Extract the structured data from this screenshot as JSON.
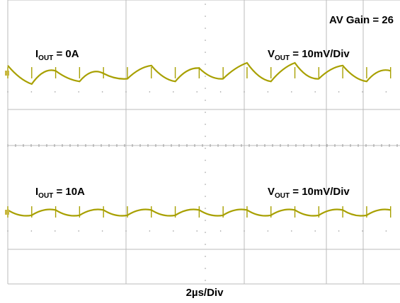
{
  "chart_data": [
    {
      "type": "line",
      "title": "",
      "xlabel": "2µs/Div",
      "ylabel": "",
      "gain_label": "AV Gain = 26",
      "condition": {
        "main": "I",
        "sub": "OUT",
        "rest": " = 0A"
      },
      "scale": {
        "main": "V",
        "sub": "OUT",
        "rest": " = 10mV/Div"
      },
      "xlim": [
        0,
        20
      ],
      "ylim": [
        -40,
        40
      ],
      "grid": true,
      "series": [
        {
          "color": "#a8a000",
          "x": [
            0,
            1.22,
            2.44,
            3.66,
            4.88,
            6.1,
            7.32,
            8.54,
            9.76,
            10.98,
            12.2,
            13.42,
            14.64,
            15.86,
            17.08,
            18.3,
            19.52
          ],
          "y": [
            3,
            -4,
            1,
            -3,
            0,
            -2,
            3,
            -3,
            2,
            -2,
            4,
            -3,
            4,
            -2,
            3,
            -3,
            1
          ]
        }
      ]
    },
    {
      "type": "line",
      "title": "",
      "xlabel": "2µs/Div",
      "ylabel": "",
      "condition": {
        "main": "I",
        "sub": "OUT",
        "rest": " = 10A"
      },
      "scale": {
        "main": "V",
        "sub": "OUT",
        "rest": " = 10mV/Div"
      },
      "xlim": [
        0,
        20
      ],
      "ylim": [
        -40,
        40
      ],
      "grid": true,
      "series": [
        {
          "color": "#a8a000",
          "x": [
            0,
            1.22,
            2.44,
            3.66,
            4.88,
            6.1,
            7.32,
            8.54,
            9.76,
            10.98,
            12.2,
            13.42,
            14.64,
            15.86,
            17.08,
            18.3,
            19.52
          ],
          "y": [
            1,
            -1,
            1,
            -1,
            1,
            -1,
            1,
            -1,
            1,
            -1,
            1,
            -1,
            1,
            -1,
            1,
            -1,
            1
          ]
        }
      ]
    }
  ]
}
